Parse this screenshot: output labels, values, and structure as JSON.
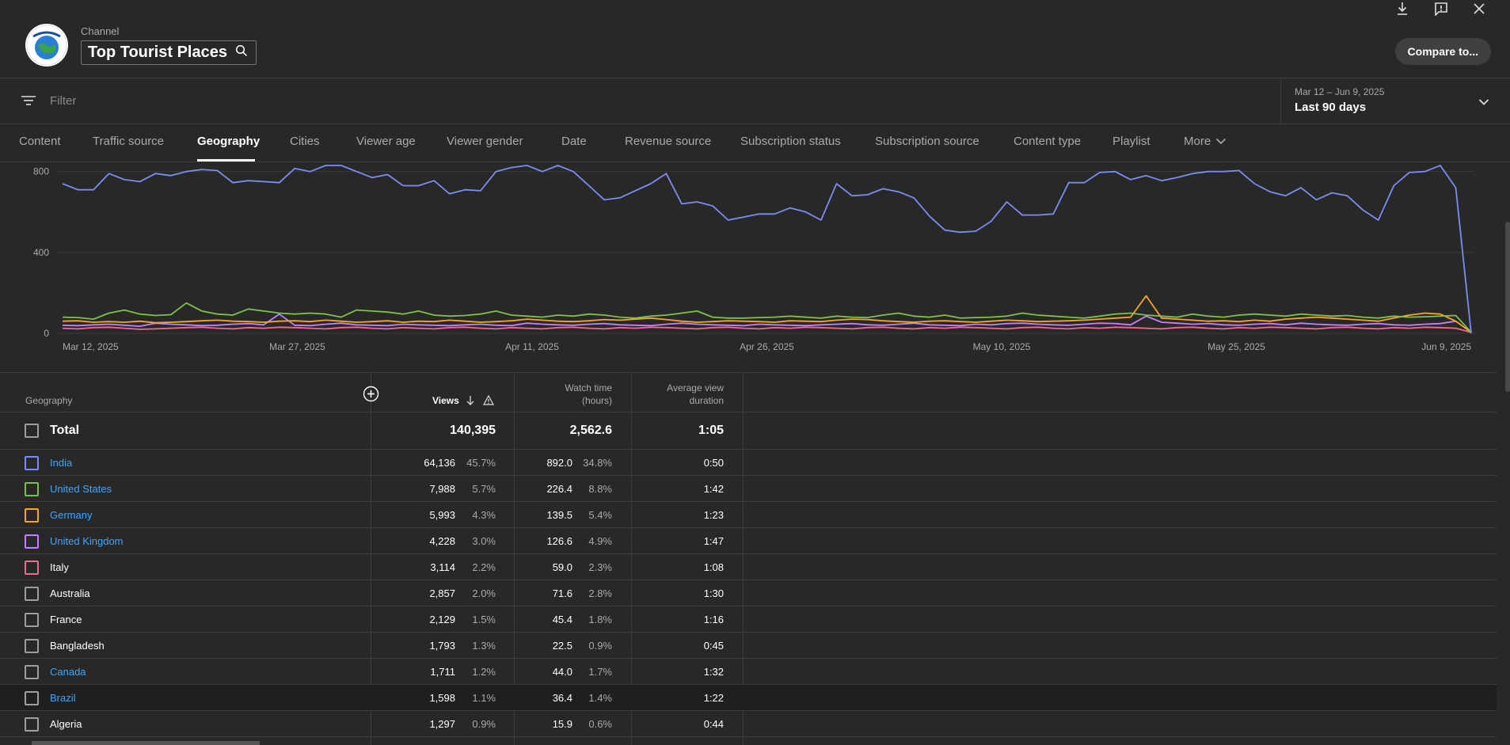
{
  "header": {
    "channel_label": "Channel",
    "channel_name": "Top Tourist Places",
    "compare_label": "Compare to..."
  },
  "filter": {
    "placeholder": "Filter"
  },
  "date": {
    "range": "Mar 12 – Jun 9, 2025",
    "period": "Last 90 days"
  },
  "tabs": [
    {
      "label": "Content"
    },
    {
      "label": "Traffic source"
    },
    {
      "label": "Geography",
      "active": true
    },
    {
      "label": "Cities"
    },
    {
      "label": "Viewer age"
    },
    {
      "label": "Viewer gender"
    },
    {
      "label": "Date"
    },
    {
      "label": "Revenue source"
    },
    {
      "label": "Subscription status"
    },
    {
      "label": "Subscription source"
    },
    {
      "label": "Content type"
    },
    {
      "label": "Playlist"
    },
    {
      "label": "More"
    }
  ],
  "chart_data": {
    "type": "line",
    "y_ticks": [
      "0",
      "400",
      "800"
    ],
    "x_ticks": [
      "Mar 12, 2025",
      "Mar 27, 2025",
      "Apr 11, 2025",
      "Apr 26, 2025",
      "May 10, 2025",
      "May 25, 2025",
      "Jun 9, 2025"
    ],
    "ylim": [
      0,
      830
    ],
    "grid": true,
    "series": [
      {
        "color": "#7c8cf0",
        "values": [
          740,
          710,
          710,
          790,
          760,
          750,
          790,
          780,
          800,
          810,
          805,
          745,
          755,
          750,
          745,
          815,
          800,
          870,
          860,
          800,
          770,
          785,
          730,
          730,
          755,
          690,
          710,
          705,
          800,
          820,
          830,
          800,
          860,
          800,
          730,
          660,
          670,
          705,
          740,
          790,
          640,
          650,
          630,
          560,
          575,
          590,
          590,
          620,
          600,
          560,
          740,
          680,
          685,
          715,
          700,
          670,
          580,
          510,
          500,
          505,
          555,
          650,
          585,
          585,
          590,
          745,
          745,
          795,
          800,
          760,
          780,
          755,
          770,
          790,
          800,
          800,
          805,
          740,
          700,
          680,
          720,
          660,
          695,
          680,
          610,
          560,
          730,
          795,
          800,
          860,
          720,
          0
        ]
      },
      {
        "color": "#7cc24a",
        "values": [
          80,
          78,
          70,
          100,
          115,
          95,
          88,
          92,
          150,
          110,
          95,
          90,
          120,
          110,
          100,
          95,
          100,
          95,
          80,
          115,
          110,
          105,
          95,
          110,
          90,
          85,
          88,
          95,
          110,
          90,
          85,
          80,
          90,
          85,
          95,
          90,
          80,
          75,
          85,
          90,
          100,
          110,
          80,
          75,
          75,
          78,
          80,
          85,
          80,
          75,
          85,
          80,
          78,
          90,
          100,
          85,
          80,
          90,
          75,
          78,
          80,
          85,
          100,
          90,
          85,
          80,
          75,
          85,
          95,
          100,
          90,
          85,
          80,
          95,
          85,
          80,
          90,
          95,
          90,
          85,
          95,
          90,
          85,
          88,
          80,
          75,
          85,
          80,
          82,
          85,
          88,
          5
        ]
      },
      {
        "color": "#f5a623",
        "values": [
          60,
          62,
          55,
          58,
          55,
          60,
          52,
          55,
          58,
          62,
          65,
          60,
          58,
          55,
          60,
          62,
          58,
          65,
          60,
          55,
          58,
          62,
          55,
          60,
          58,
          65,
          60,
          55,
          58,
          62,
          70,
          65,
          60,
          58,
          62,
          68,
          65,
          70,
          75,
          68,
          60,
          55,
          58,
          62,
          60,
          58,
          55,
          62,
          60,
          58,
          65,
          70,
          68,
          62,
          58,
          55,
          60,
          62,
          58,
          55,
          60,
          65,
          62,
          58,
          60,
          62,
          65,
          70,
          75,
          80,
          185,
          75,
          70,
          65,
          60,
          62,
          58,
          65,
          60,
          70,
          75,
          80,
          75,
          70,
          65,
          60,
          75,
          90,
          100,
          95,
          60,
          5
        ]
      },
      {
        "color": "#c77dff",
        "values": [
          40,
          38,
          42,
          45,
          40,
          35,
          50,
          45,
          42,
          38,
          40,
          45,
          48,
          42,
          95,
          40,
          38,
          45,
          50,
          42,
          40,
          38,
          45,
          42,
          40,
          38,
          42,
          45,
          40,
          38,
          50,
          45,
          42,
          40,
          45,
          48,
          42,
          40,
          38,
          45,
          50,
          45,
          42,
          40,
          38,
          45,
          42,
          40,
          38,
          42,
          45,
          48,
          42,
          40,
          45,
          50,
          42,
          40,
          38,
          45,
          42,
          48,
          50,
          45,
          42,
          40,
          45,
          50,
          48,
          42,
          85,
          55,
          50,
          45,
          48,
          42,
          40,
          45,
          48,
          42,
          50,
          45,
          42,
          40,
          45,
          48,
          42,
          40,
          45,
          48,
          60,
          5
        ]
      },
      {
        "color": "#f06a8a",
        "values": [
          25,
          22,
          28,
          30,
          25,
          20,
          22,
          25,
          28,
          30,
          25,
          22,
          28,
          25,
          30,
          28,
          25,
          22,
          28,
          30,
          25,
          22,
          28,
          25,
          22,
          28,
          30,
          25,
          22,
          28,
          25,
          22,
          28,
          30,
          25,
          22,
          28,
          25,
          30,
          28,
          25,
          22,
          28,
          30,
          25,
          22,
          28,
          25,
          30,
          28,
          25,
          22,
          28,
          30,
          25,
          22,
          28,
          25,
          30,
          28,
          25,
          22,
          28,
          30,
          25,
          22,
          28,
          25,
          30,
          28,
          25,
          22,
          28,
          30,
          25,
          22,
          28,
          25,
          30,
          28,
          25,
          22,
          28,
          30,
          25,
          22,
          28,
          25,
          30,
          28,
          25,
          5
        ]
      }
    ]
  },
  "table": {
    "col_geography": "Geography",
    "col_views": "Views",
    "col_watch_1": "Watch time",
    "col_watch_2": "(hours)",
    "col_avg_1": "Average view",
    "col_avg_2": "duration",
    "total": {
      "label": "Total",
      "views": "140,395",
      "watch": "2,562.6",
      "avg": "1:05"
    },
    "rows": [
      {
        "name": "India",
        "views": "64,136",
        "views_pct": "45.7%",
        "watch": "892.0",
        "watch_pct": "34.8%",
        "avg": "0:50",
        "link": true,
        "color": "#7c8cf0"
      },
      {
        "name": "United States",
        "views": "7,988",
        "views_pct": "5.7%",
        "watch": "226.4",
        "watch_pct": "8.8%",
        "avg": "1:42",
        "link": true,
        "color": "#7cc24a"
      },
      {
        "name": "Germany",
        "views": "5,993",
        "views_pct": "4.3%",
        "watch": "139.5",
        "watch_pct": "5.4%",
        "avg": "1:23",
        "link": true,
        "color": "#f5a623"
      },
      {
        "name": "United Kingdom",
        "views": "4,228",
        "views_pct": "3.0%",
        "watch": "126.6",
        "watch_pct": "4.9%",
        "avg": "1:47",
        "link": true,
        "color": "#c77dff"
      },
      {
        "name": "Italy",
        "views": "3,114",
        "views_pct": "2.2%",
        "watch": "59.0",
        "watch_pct": "2.3%",
        "avg": "1:08",
        "link": false,
        "color": "#f06a8a"
      },
      {
        "name": "Australia",
        "views": "2,857",
        "views_pct": "2.0%",
        "watch": "71.6",
        "watch_pct": "2.8%",
        "avg": "1:30",
        "link": false,
        "color": "#9e9e9e"
      },
      {
        "name": "France",
        "views": "2,129",
        "views_pct": "1.5%",
        "watch": "45.4",
        "watch_pct": "1.8%",
        "avg": "1:16",
        "link": false,
        "color": "#9e9e9e"
      },
      {
        "name": "Bangladesh",
        "views": "1,793",
        "views_pct": "1.3%",
        "watch": "22.5",
        "watch_pct": "0.9%",
        "avg": "0:45",
        "link": false,
        "color": "#9e9e9e"
      },
      {
        "name": "Canada",
        "views": "1,711",
        "views_pct": "1.2%",
        "watch": "44.0",
        "watch_pct": "1.7%",
        "avg": "1:32",
        "link": true,
        "color": "#9e9e9e"
      },
      {
        "name": "Brazil",
        "views": "1,598",
        "views_pct": "1.1%",
        "watch": "36.4",
        "watch_pct": "1.4%",
        "avg": "1:22",
        "link": true,
        "color": "#9e9e9e",
        "highlight": true
      },
      {
        "name": "Algeria",
        "views": "1,297",
        "views_pct": "0.9%",
        "watch": "15.9",
        "watch_pct": "0.6%",
        "avg": "0:44",
        "link": false,
        "color": "#9e9e9e"
      }
    ]
  }
}
